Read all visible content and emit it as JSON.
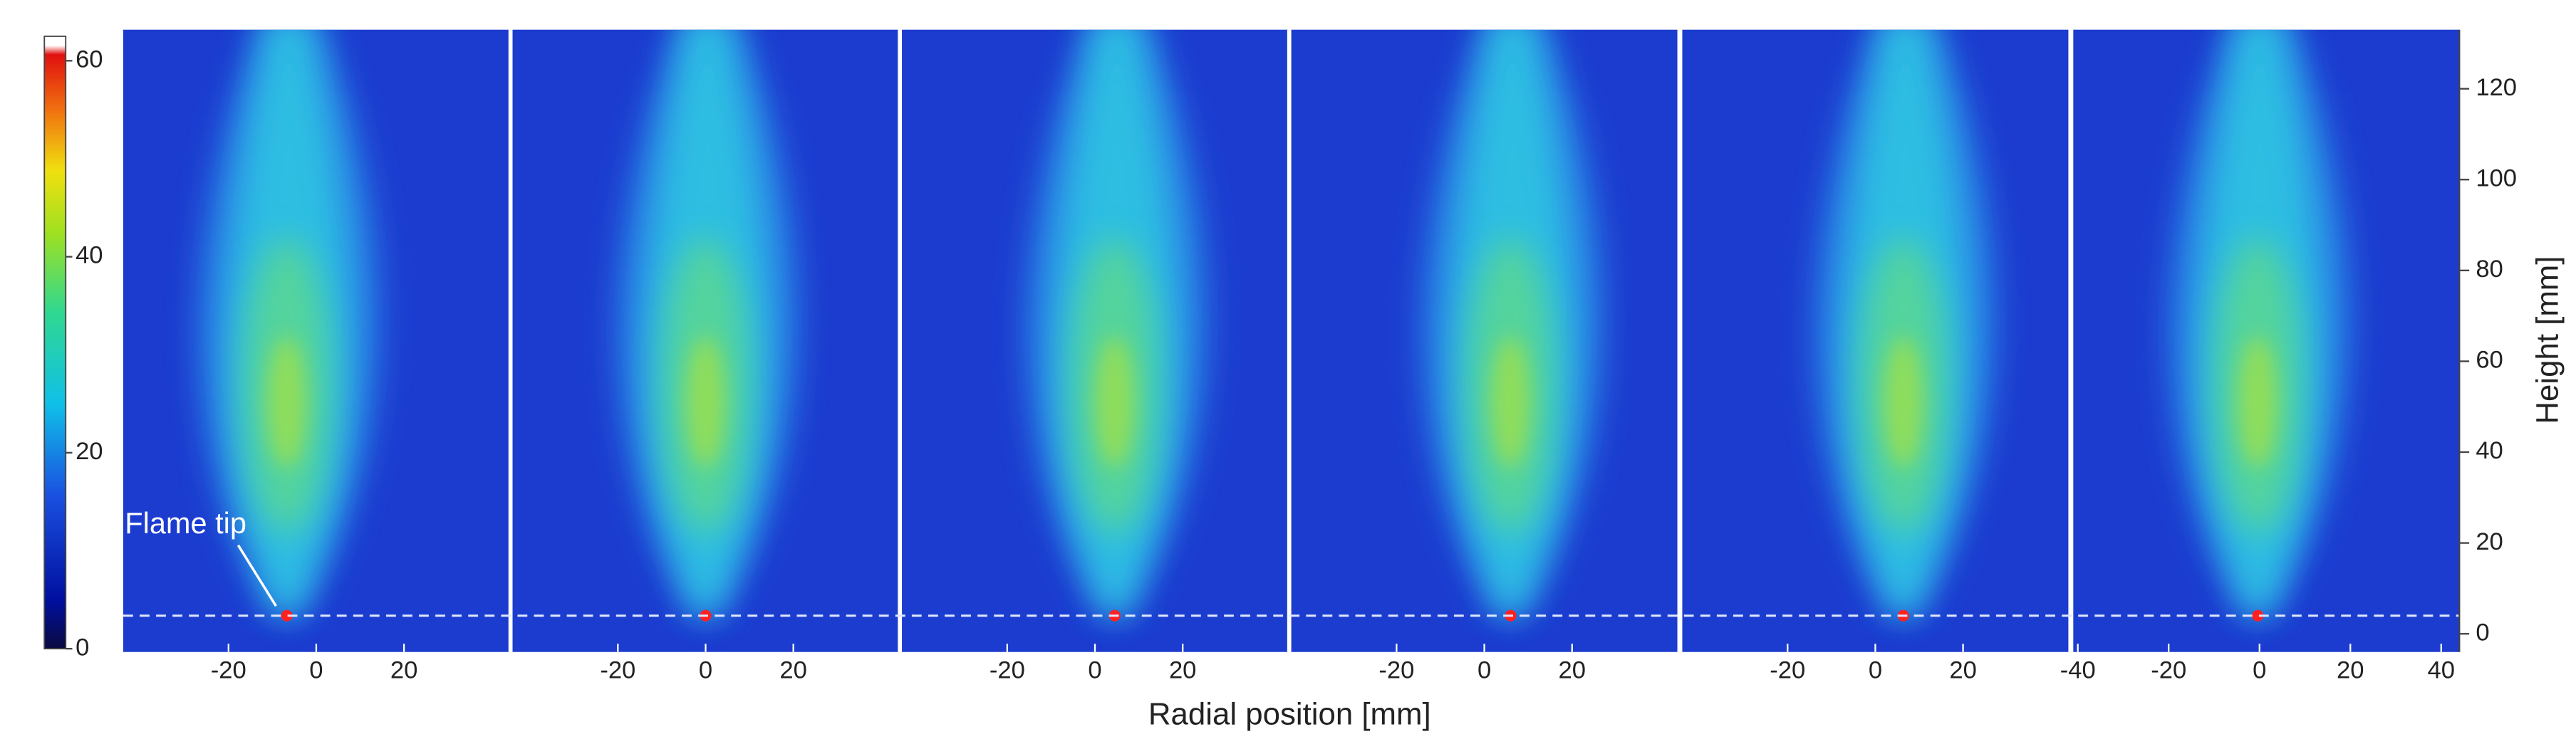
{
  "chart_data": {
    "type": "heatmap-panels",
    "xlabel": "Radial position [mm]",
    "ylabel": "Height [mm]",
    "ylim": [
      -4,
      133
    ],
    "yticks": [
      0,
      20,
      40,
      60,
      80,
      100,
      120
    ],
    "colorbar": {
      "lim": [
        0,
        62.5
      ],
      "ticks": [
        0,
        20,
        40,
        60
      ]
    },
    "tip_height": 4,
    "annotation": "Flame tip",
    "panels": [
      {
        "xlim": [
          -44,
          44
        ],
        "xticks": [
          -20,
          0,
          20
        ],
        "tip_x": -6.7
      },
      {
        "xlim": [
          -44,
          44
        ],
        "xticks": [
          -20,
          0,
          20
        ],
        "tip_x": 0
      },
      {
        "xlim": [
          -44,
          44
        ],
        "xticks": [
          -20,
          0,
          20
        ],
        "tip_x": 4.5
      },
      {
        "xlim": [
          -44,
          44
        ],
        "xticks": [
          -20,
          0,
          20
        ],
        "tip_x": 6
      },
      {
        "xlim": [
          -44,
          44
        ],
        "xticks": [
          -20,
          0,
          20
        ],
        "tip_x": 6.4
      },
      {
        "xlim": [
          -41,
          44
        ],
        "xticks": [
          -40,
          -20,
          0,
          20,
          40
        ],
        "tip_x": -0.4
      }
    ]
  }
}
